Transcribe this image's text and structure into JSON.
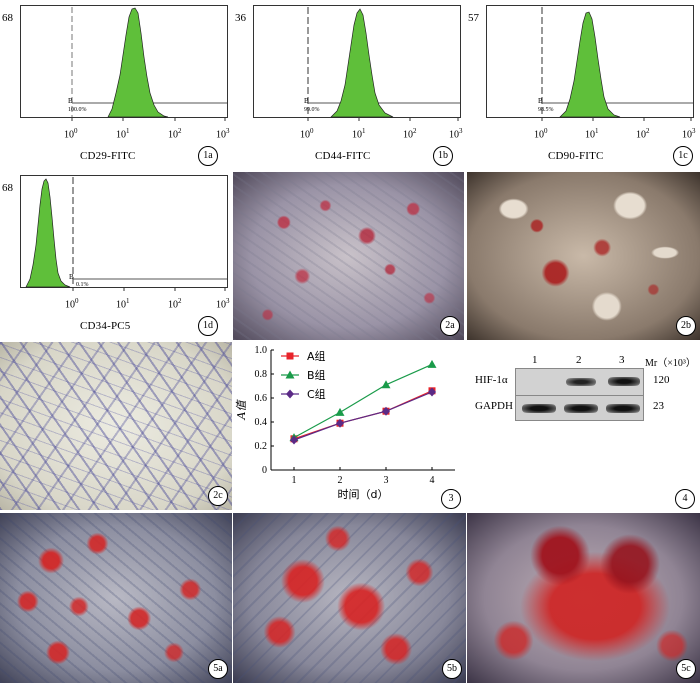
{
  "flow_panels": [
    {
      "ymax": "68",
      "xlabel": "CD29-FITC",
      "badge": "1a",
      "gate": "100.0%"
    },
    {
      "ymax": "36",
      "xlabel": "CD44-FITC",
      "badge": "1b",
      "gate": "99.0%"
    },
    {
      "ymax": "57",
      "xlabel": "CD90-FITC",
      "badge": "1c",
      "gate": "98.5%"
    },
    {
      "ymax": "68",
      "xlabel": "CD34-PC5",
      "badge": "1d",
      "gate": "0.1%"
    }
  ],
  "photo_labels": {
    "p2a": "2a",
    "p2b": "2b",
    "p2c": "2c",
    "p5a": "5a",
    "p5b": "5b",
    "p5c": "5c"
  },
  "chart_data": {
    "type": "line",
    "x": [
      1,
      2,
      3,
      4
    ],
    "series": [
      {
        "name": "A组",
        "values": [
          0.26,
          0.39,
          0.49,
          0.66
        ],
        "color": "#e8232a",
        "marker": "square"
      },
      {
        "name": "B组",
        "values": [
          0.27,
          0.48,
          0.71,
          0.88
        ],
        "color": "#1a9b4a",
        "marker": "triangle"
      },
      {
        "name": "C组",
        "values": [
          0.25,
          0.39,
          0.49,
          0.65
        ],
        "color": "#5b2a86",
        "marker": "diamond"
      }
    ],
    "xlabel": "时间（d）",
    "ylabel": "A值",
    "ylim": [
      0,
      1.0
    ],
    "yticks": [
      "0",
      "0.2",
      "0.4",
      "0.6",
      "0.8",
      "1.0"
    ],
    "xticks": [
      "1",
      "2",
      "3",
      "4"
    ],
    "badge": "3",
    "legend": "top-left"
  },
  "western": {
    "lanes": [
      "1",
      "2",
      "3"
    ],
    "mr_label": "Mr（×10³）",
    "rows": [
      {
        "name": "HIF-1α",
        "mr": "120"
      },
      {
        "name": "GAPDH",
        "mr": "23"
      }
    ],
    "badge": "4"
  }
}
